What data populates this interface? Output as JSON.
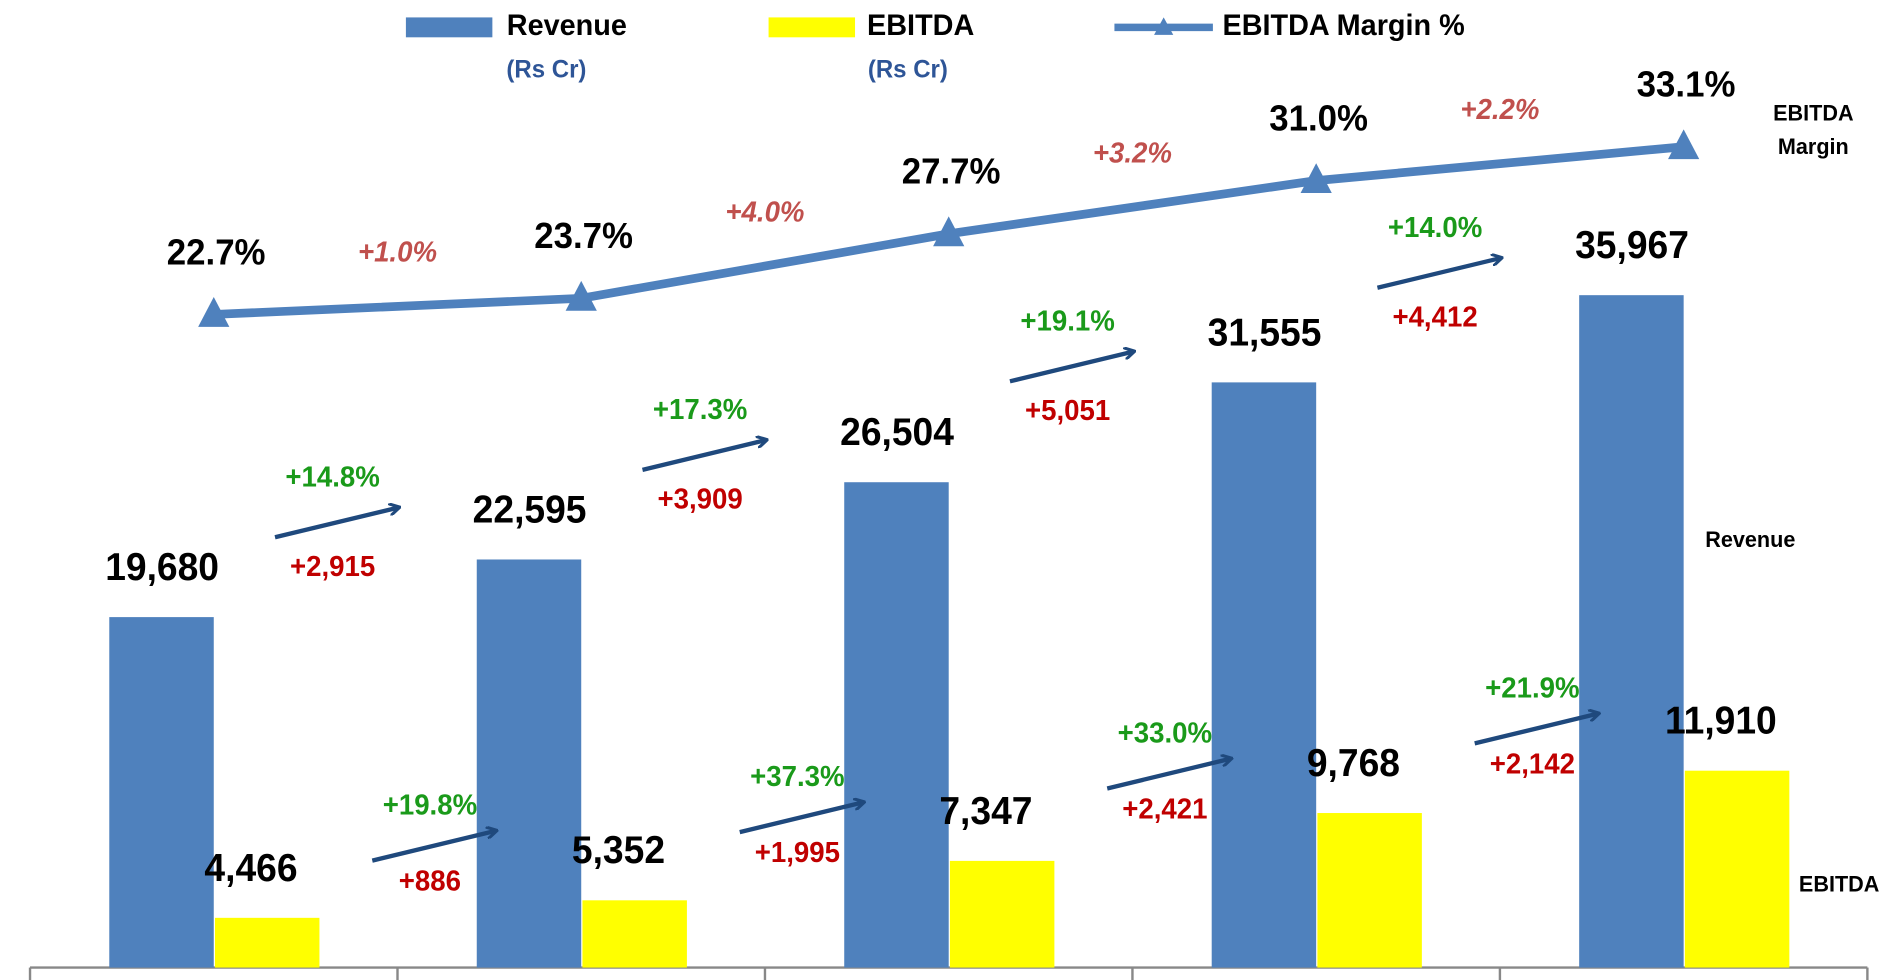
{
  "chart_data": {
    "type": "bar",
    "categories": [
      null,
      null,
      null,
      null,
      null
    ],
    "series": [
      {
        "name": "Revenue",
        "unit": "(Rs Cr)",
        "color": "#4f81bd",
        "values": [
          19680,
          22595,
          26504,
          31555,
          35967
        ],
        "value_labels": [
          "19,680",
          "22,595",
          "26,504",
          "31,555",
          "35,967"
        ]
      },
      {
        "name": "EBITDA",
        "unit": "(Rs Cr)",
        "color": "#ffff00",
        "values": [
          4466,
          5352,
          7347,
          9768,
          11910
        ],
        "value_labels": [
          "4,466",
          "5,352",
          "7,347",
          "9,768",
          "11,910"
        ]
      },
      {
        "name": "EBITDA Margin %",
        "type": "line",
        "axis": "y2",
        "color": "#4f81bd",
        "values": [
          22.7,
          23.7,
          27.7,
          31.0,
          33.1
        ],
        "value_labels": [
          "22.7%",
          "23.7%",
          "27.7%",
          "31.0%",
          "33.1%"
        ]
      }
    ],
    "ylim": [
      1950,
      50900
    ],
    "y2lim": [
      -17.8,
      42.2
    ],
    "margin_changes": [
      "+1.0%",
      "+4.0%",
      "+3.2%",
      "+2.2%"
    ],
    "revenue_changes": [
      {
        "percent": "+14.8%",
        "amount": "+2,915"
      },
      {
        "percent": "+17.3%",
        "amount": "+3,909"
      },
      {
        "percent": "+19.1%",
        "amount": "+5,051"
      },
      {
        "percent": "+14.0%",
        "amount": "+4,412"
      }
    ],
    "ebitda_changes": [
      {
        "percent": "+19.8%",
        "amount": "+886"
      },
      {
        "percent": "+37.3%",
        "amount": "+1,995"
      },
      {
        "percent": "+33.0%",
        "amount": "+2,421"
      },
      {
        "percent": "+21.9%",
        "amount": "+2,142"
      }
    ],
    "side_labels": {
      "margin": "EBITDA Margin",
      "revenue": "Revenue",
      "ebitda": "EBITDA"
    }
  }
}
